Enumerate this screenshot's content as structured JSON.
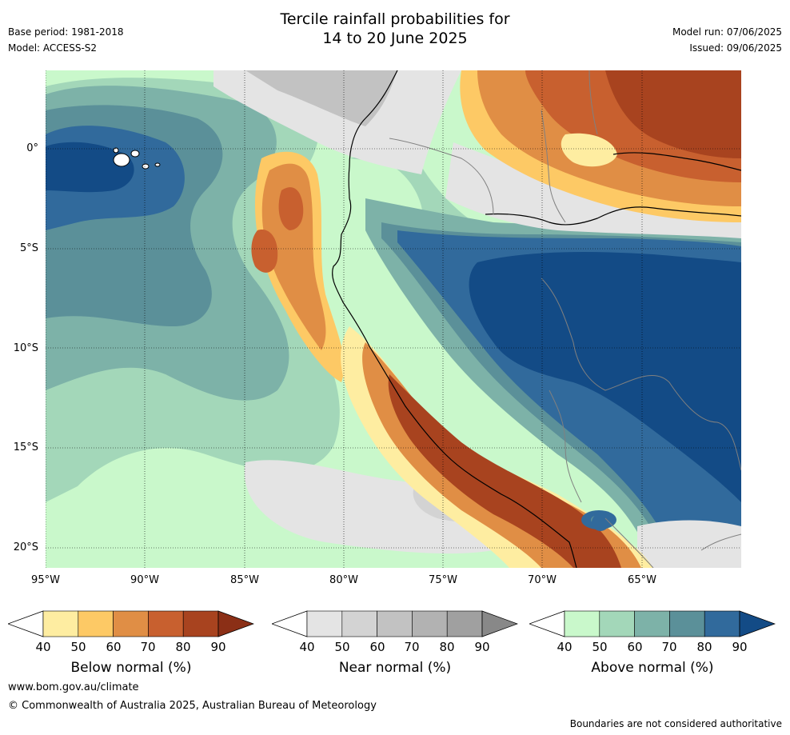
{
  "title_line1": "Tercile rainfall probabilities for",
  "title_line2": "14 to 20 June 2025",
  "meta_left": {
    "base_period": "Base period: 1981-2018",
    "model": "Model: ACCESS-S2"
  },
  "meta_right": {
    "model_run": "Model run: 07/06/2025",
    "issued": "Issued: 09/06/2025"
  },
  "map": {
    "lon_range": [
      -95,
      -60
    ],
    "lat_range": [
      -21,
      4
    ],
    "lat_labels": [
      "0°",
      "5°S",
      "10°S",
      "15°S",
      "20°S"
    ],
    "lon_labels": [
      "95°W",
      "90°W",
      "85°W",
      "80°W",
      "75°W",
      "70°W",
      "65°W"
    ]
  },
  "legends": [
    {
      "title": "Below normal (%)",
      "ticks": [
        "40",
        "50",
        "60",
        "70",
        "80",
        "90"
      ],
      "colors": [
        "#ffffff",
        "#feeda1",
        "#fdc965",
        "#e08e45",
        "#c8602f",
        "#a8431f",
        "#8b2f16"
      ]
    },
    {
      "title": "Near normal (%)",
      "ticks": [
        "40",
        "50",
        "60",
        "70",
        "80",
        "90"
      ],
      "colors": [
        "#ffffff",
        "#e4e4e4",
        "#d3d3d3",
        "#c2c2c2",
        "#b2b2b2",
        "#a0a0a0",
        "#888888"
      ]
    },
    {
      "title": "Above normal (%)",
      "ticks": [
        "40",
        "50",
        "60",
        "70",
        "80",
        "90"
      ],
      "colors": [
        "#ffffff",
        "#c9f8cb",
        "#a3d7b9",
        "#7db2a8",
        "#5b9099",
        "#316a9c",
        "#134b86"
      ]
    }
  ],
  "footer": {
    "website": "www.bom.gov.au/climate",
    "copyright": "© Commonwealth of Australia 2025, Australian Bureau of Meteorology",
    "disclaimer": "Boundaries are not considered authoritative"
  }
}
